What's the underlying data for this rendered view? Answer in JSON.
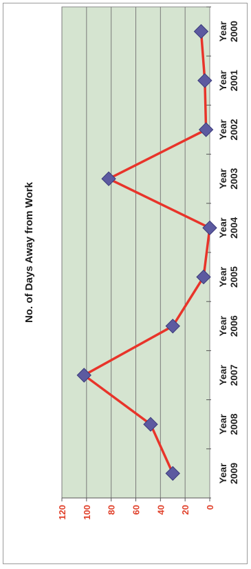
{
  "chart_data": {
    "type": "line",
    "orientation": "rotated-90-ccw",
    "title": "No. of Days Away from Work",
    "categories": [
      "Year 2000",
      "Year 2001",
      "Year 2002",
      "Year 2003",
      "Year 2004",
      "Year 2005",
      "Year 2006",
      "Year 2007",
      "Year 2008",
      "Year 2009"
    ],
    "values": [
      7,
      4,
      3,
      82,
      0,
      5,
      30,
      102,
      48,
      30
    ],
    "ylim": [
      0,
      120
    ],
    "yticks": [
      0,
      20,
      40,
      60,
      80,
      100,
      120
    ],
    "grid": true,
    "legend": "none",
    "colors": {
      "line": "#e8342a",
      "marker": "#5c5aa0",
      "marker_edge": "#3a3a7a",
      "plot_bg": "#d5e4d0",
      "grid": "#7a7a7a",
      "tick_text": "#e0402a"
    }
  }
}
